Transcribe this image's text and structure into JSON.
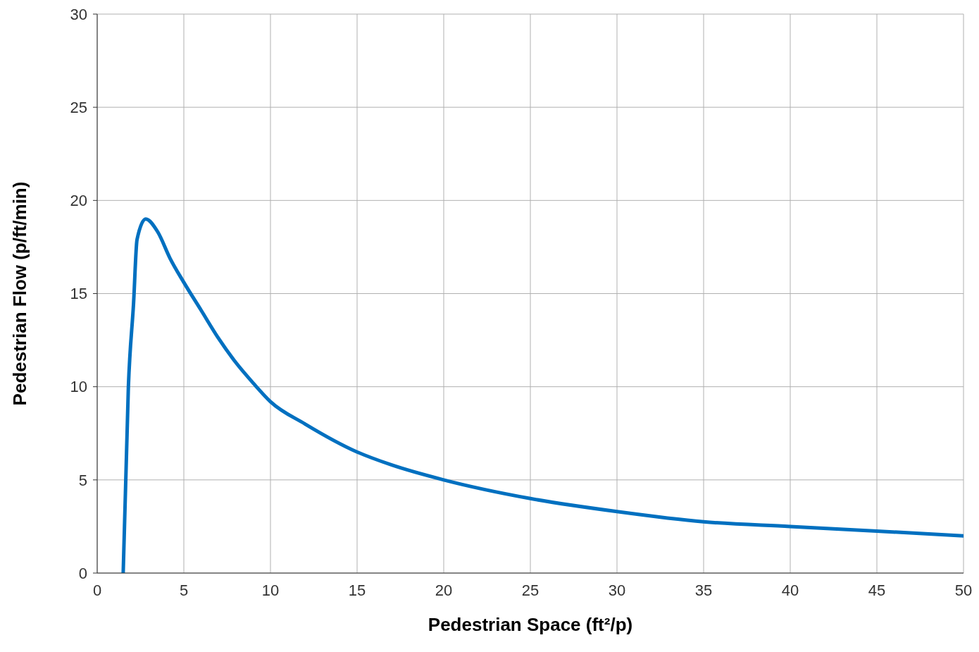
{
  "chart_data": {
    "type": "line",
    "xlabel": "Pedestrian Space (ft²/p)",
    "ylabel": "Pedestrian Flow (p/ft/min)",
    "x": [
      1.5,
      1.8,
      2.1,
      2.3,
      2.8,
      3.5,
      4.2,
      5,
      6,
      7,
      8,
      9,
      10,
      12,
      15,
      17,
      20,
      25,
      30,
      35,
      40,
      45,
      50
    ],
    "series": [
      {
        "color": "#0070c0",
        "values": [
          0,
          10,
          14.5,
          17.9,
          19,
          18.3,
          16.9,
          15.6,
          14.1,
          12.6,
          11.3,
          10.2,
          9.2,
          8,
          6.5,
          5.8,
          5,
          4,
          3.3,
          2.75,
          2.5,
          2.25,
          2
        ]
      }
    ],
    "xlim": [
      0,
      50
    ],
    "xticks": [
      0,
      5,
      10,
      15,
      20,
      25,
      30,
      35,
      40,
      45,
      50
    ],
    "ylim": [
      0,
      30
    ],
    "yticks": [
      0,
      5,
      10,
      15,
      20,
      25,
      30
    ],
    "grid": true,
    "marker": "none",
    "line_style": "solid"
  }
}
